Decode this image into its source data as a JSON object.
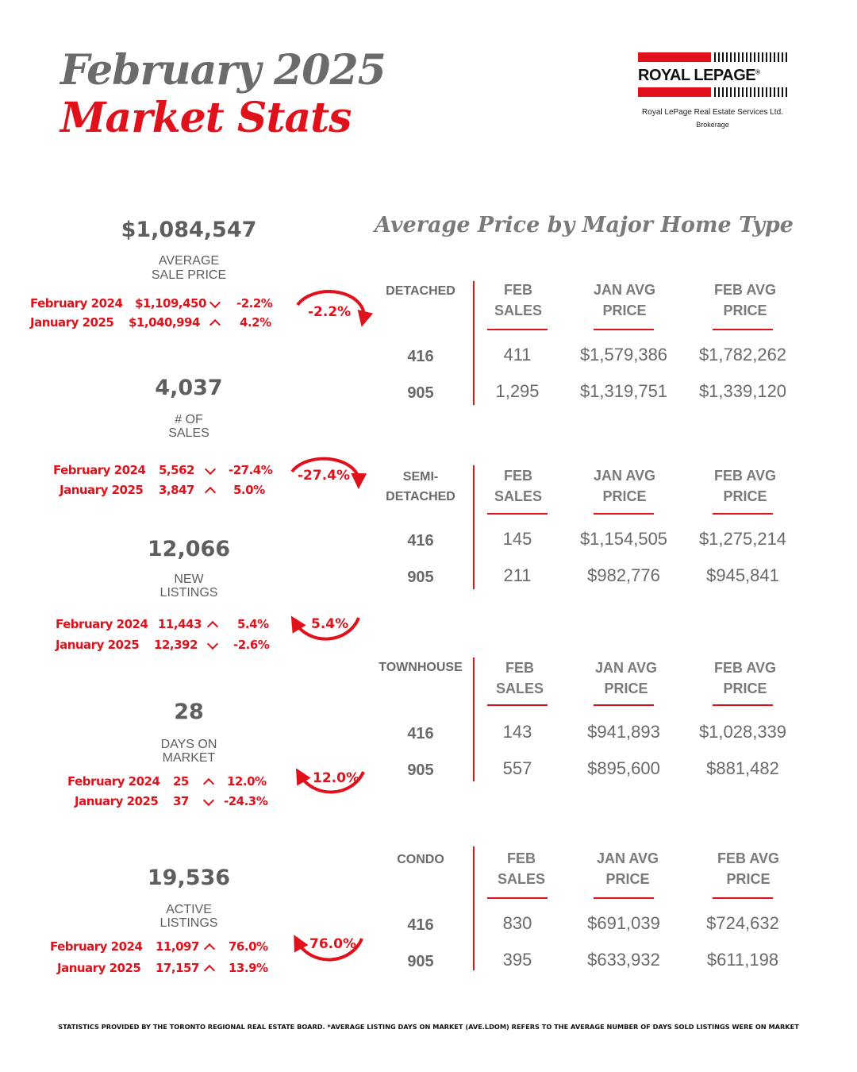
{
  "header": {
    "title_line1": "February 2025",
    "title_line2": "Market Stats"
  },
  "logo": {
    "wordmark": "ROYAL LEPAGE",
    "registered": "®",
    "company": "Royal LePage Real Estate Services Ltd.",
    "brokerage": "Brokerage",
    "brand_red": "#e0111b"
  },
  "stats": [
    {
      "value": "$1,084,547",
      "label_line1": "AVERAGE",
      "label_line2": "SALE PRICE",
      "compare": [
        {
          "period": "February 2024",
          "value": "$1,109,450",
          "direction": "down",
          "change": "-2.2%"
        },
        {
          "period": "January 2025",
          "value": "$1,040,994",
          "direction": "up",
          "change": "4.2%"
        }
      ],
      "arc_change": "-2.2%",
      "arc_direction": "down"
    },
    {
      "value": "4,037",
      "label_line1": "# OF",
      "label_line2": "SALES",
      "compare": [
        {
          "period": "February 2024",
          "value": "5,562",
          "direction": "down",
          "change": "-27.4%"
        },
        {
          "period": "January 2025",
          "value": "3,847",
          "direction": "up",
          "change": "5.0%"
        }
      ],
      "arc_change": "-27.4%",
      "arc_direction": "down"
    },
    {
      "value": "12,066",
      "label_line1": "NEW",
      "label_line2": "LISTINGS",
      "compare": [
        {
          "period": "February 2024",
          "value": "11,443",
          "direction": "up",
          "change": "5.4%"
        },
        {
          "period": "January 2025",
          "value": "12,392",
          "direction": "down",
          "change": "-2.6%"
        }
      ],
      "arc_change": "5.4%",
      "arc_direction": "up"
    },
    {
      "value": "28",
      "label_line1": "DAYS ON",
      "label_line2": "MARKET",
      "compare": [
        {
          "period": "February 2024",
          "value": "25",
          "direction": "up",
          "change": "12.0%"
        },
        {
          "period": "January 2025",
          "value": "37",
          "direction": "down",
          "change": "-24.3%"
        }
      ],
      "arc_change": "12.0%",
      "arc_direction": "up"
    },
    {
      "value": "19,536",
      "label_line1": "ACTIVE",
      "label_line2": "LISTINGS",
      "compare": [
        {
          "period": "February 2024",
          "value": "11,097",
          "direction": "up",
          "change": "76.0%"
        },
        {
          "period": "January 2025",
          "value": "17,157",
          "direction": "up",
          "change": "13.9%"
        }
      ],
      "arc_change": "76.0%",
      "arc_direction": "up"
    }
  ],
  "home_types": {
    "section_title": "Average Price by Major Home Type",
    "col_feb_sales": [
      "FEB",
      "SALES"
    ],
    "col_jan_avg": [
      "JAN AVG",
      "PRICE"
    ],
    "col_feb_avg": [
      "FEB AVG",
      "PRICE"
    ],
    "types": [
      {
        "name_line1": "DETACHED",
        "name_line2": "",
        "rows": [
          {
            "area": "416",
            "feb_sales": "411",
            "jan_avg": "$1,579,386",
            "feb_avg": "$1,782,262"
          },
          {
            "area": "905",
            "feb_sales": "1,295",
            "jan_avg": "$1,319,751",
            "feb_avg": "$1,339,120"
          }
        ]
      },
      {
        "name_line1": "SEMI-",
        "name_line2": "DETACHED",
        "rows": [
          {
            "area": "416",
            "feb_sales": "145",
            "jan_avg": "$1,154,505",
            "feb_avg": "$1,275,214"
          },
          {
            "area": "905",
            "feb_sales": "211",
            "jan_avg": "$982,776",
            "feb_avg": "$945,841"
          }
        ]
      },
      {
        "name_line1": "TOWNHOUSE",
        "name_line2": "",
        "rows": [
          {
            "area": "416",
            "feb_sales": "143",
            "jan_avg": "$941,893",
            "feb_avg": "$1,028,339"
          },
          {
            "area": "905",
            "feb_sales": "557",
            "jan_avg": "$895,600",
            "feb_avg": "$881,482"
          }
        ]
      },
      {
        "name_line1": "CONDO",
        "name_line2": "",
        "rows": [
          {
            "area": "416",
            "feb_sales": "830",
            "jan_avg": "$691,039",
            "feb_avg": "$724,632"
          },
          {
            "area": "905",
            "feb_sales": "395",
            "jan_avg": "$633,932",
            "feb_avg": "$611,198"
          }
        ]
      }
    ]
  },
  "footer": {
    "note": "STATISTICS PROVIDED BY THE TORONTO REGIONAL REAL ESTATE BOARD. *AVERAGE LISTING DAYS ON MARKET (AVE.LDOM) REFERS TO THE AVERAGE NUMBER OF DAYS SOLD LISTINGS WERE ON MARKET"
  }
}
